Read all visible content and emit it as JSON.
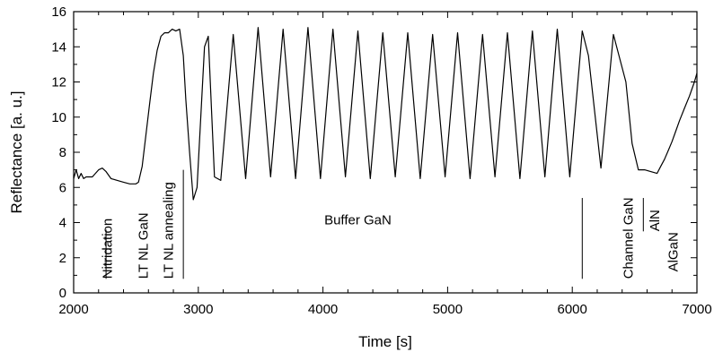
{
  "chart_data": {
    "type": "line",
    "title": "",
    "xlabel": "Time [s]",
    "ylabel": "Reflectance [a. u.]",
    "xlim": [
      2000,
      7000
    ],
    "ylim": [
      0,
      16
    ],
    "xticks": [
      2000,
      3000,
      4000,
      5000,
      6000,
      7000
    ],
    "yticks": [
      0,
      2,
      4,
      6,
      8,
      10,
      12,
      14,
      16
    ],
    "grid": false,
    "series": [
      {
        "name": "",
        "color": "#000000",
        "x": [
          2000,
          2020,
          2040,
          2060,
          2080,
          2100,
          2150,
          2200,
          2230,
          2260,
          2300,
          2350,
          2400,
          2450,
          2500,
          2520,
          2550,
          2580,
          2610,
          2640,
          2670,
          2700,
          2730,
          2760,
          2790,
          2820,
          2850,
          2880,
          2900,
          2930,
          2960,
          2990,
          3050,
          3080,
          3130,
          3180,
          3280,
          3380,
          3480,
          3580,
          3680,
          3780,
          3880,
          3980,
          4080,
          4180,
          4280,
          4380,
          4480,
          4580,
          4680,
          4780,
          4880,
          4980,
          5080,
          5180,
          5280,
          5380,
          5480,
          5580,
          5680,
          5780,
          5880,
          5980,
          6080,
          6130,
          6230,
          6330,
          6430,
          6480,
          6530,
          6580,
          6630,
          6680,
          6710,
          6740,
          6770,
          6800,
          6830,
          6860,
          6900,
          6940,
          6980,
          7000
        ],
        "y": [
          6.5,
          7.0,
          6.5,
          6.8,
          6.5,
          6.6,
          6.6,
          7.0,
          7.1,
          6.9,
          6.5,
          6.4,
          6.3,
          6.2,
          6.2,
          6.3,
          7.2,
          9.0,
          10.8,
          12.5,
          13.8,
          14.6,
          14.8,
          14.8,
          15.0,
          14.9,
          15.0,
          13.5,
          11.0,
          8.0,
          5.3,
          6.0,
          14.0,
          14.6,
          6.6,
          6.4,
          14.7,
          6.5,
          15.1,
          6.6,
          15.0,
          6.5,
          15.1,
          6.5,
          15.0,
          6.6,
          14.9,
          6.5,
          14.8,
          6.6,
          14.8,
          6.5,
          14.7,
          6.6,
          14.8,
          6.5,
          14.7,
          6.6,
          14.8,
          6.5,
          14.9,
          6.6,
          15.0,
          6.6,
          14.9,
          13.5,
          7.1,
          14.7,
          12.0,
          8.5,
          7.0,
          7.0,
          6.9,
          6.8,
          7.2,
          7.6,
          8.1,
          8.6,
          9.2,
          9.8,
          10.5,
          11.2,
          12.0,
          12.5
        ]
      }
    ],
    "annotations": [
      {
        "text": "Nitridation",
        "x": 2270,
        "y_from": 0.8,
        "y_to": 3.6,
        "line_x": 2260
      },
      {
        "text": "LT NL GaN",
        "x": 2560,
        "y_from": 0.8,
        "y_to": 3.6,
        "line_x": null
      },
      {
        "text": "LT NL annealing",
        "x": 2760,
        "y_from": 0.8,
        "y_to": 7.0,
        "line_x": 2880
      },
      {
        "text": "Buffer GaN",
        "x": 4280,
        "y": 3.9
      },
      {
        "text": "Channel GaN",
        "x": 6450,
        "y_from": 0.8,
        "y_to": 5.4,
        "line_x": 6080
      },
      {
        "text": "AlN",
        "x": 6660,
        "y_from": 3.5,
        "y_to": 5.4,
        "line_x": 6570
      },
      {
        "text": "AlGaN",
        "x": 6810,
        "y_from": 1.2,
        "y_to": 5.0,
        "line_x": null
      }
    ]
  }
}
